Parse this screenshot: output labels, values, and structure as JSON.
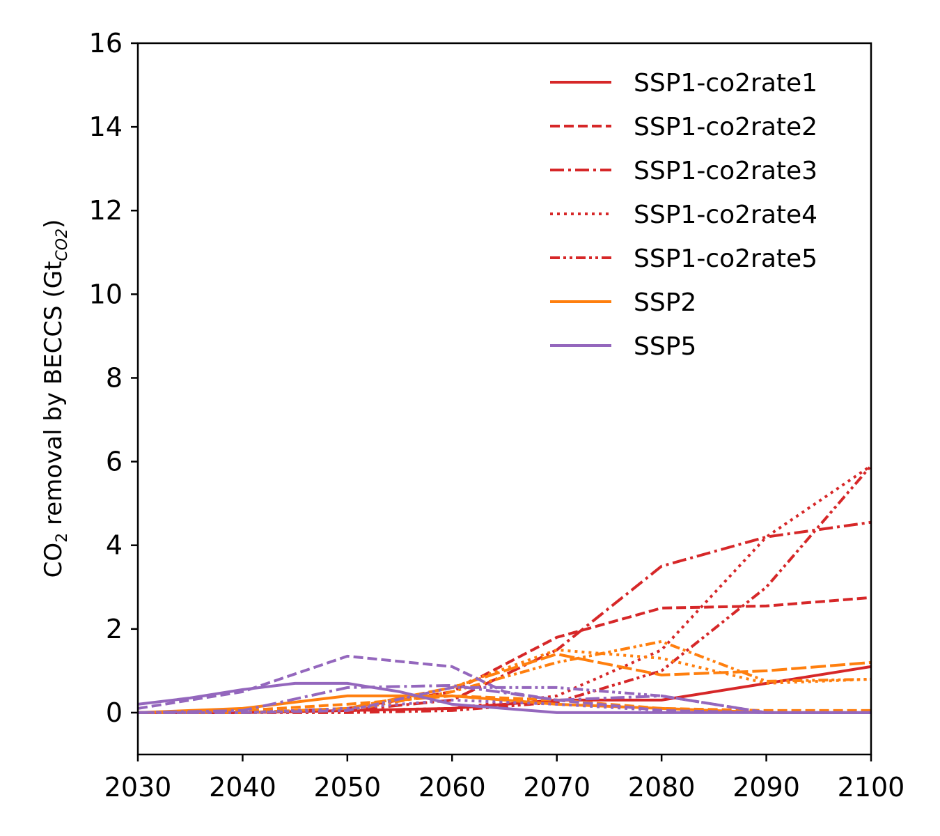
{
  "chart_data": {
    "type": "line",
    "ylabel": {
      "prefix": "CO",
      "sub": "2",
      "middle": " removal by BECCS (Gt",
      "unit_sub": "CO2",
      "suffix": ")"
    },
    "xlim": [
      2030,
      2100
    ],
    "ylim": [
      -1,
      16
    ],
    "xticks": [
      2030,
      2040,
      2050,
      2060,
      2070,
      2080,
      2090,
      2100
    ],
    "yticks": [
      0,
      2,
      4,
      6,
      8,
      10,
      12,
      14,
      16
    ],
    "grid": false,
    "legend_position": "top-right",
    "colors": {
      "ssp1": "#d62728",
      "ssp2": "#ff7f0e",
      "ssp5": "#9467bd"
    },
    "series": [
      {
        "name": "SSP1-co2rate1",
        "legend": true,
        "color": "#d62728",
        "dash": "solid",
        "x": [
          2030,
          2040,
          2050,
          2060,
          2070,
          2080,
          2090,
          2100
        ],
        "y": [
          0,
          0,
          0.05,
          0.1,
          0.3,
          0.3,
          0.7,
          1.1
        ]
      },
      {
        "name": "SSP1-co2rate2",
        "legend": true,
        "color": "#d62728",
        "dash": "dashed",
        "x": [
          2030,
          2040,
          2050,
          2060,
          2070,
          2080,
          2090,
          2100
        ],
        "y": [
          0,
          0,
          0.1,
          0.5,
          1.8,
          2.5,
          2.55,
          2.75
        ]
      },
      {
        "name": "SSP1-co2rate3",
        "legend": true,
        "color": "#d62728",
        "dash": "dashdot",
        "x": [
          2030,
          2040,
          2050,
          2060,
          2070,
          2080,
          2090,
          2100
        ],
        "y": [
          0,
          0,
          0.05,
          0.3,
          1.5,
          3.5,
          4.2,
          4.55
        ]
      },
      {
        "name": "SSP1-co2rate4",
        "legend": true,
        "color": "#d62728",
        "dash": "dotted",
        "x": [
          2030,
          2040,
          2050,
          2060,
          2070,
          2080,
          2090,
          2100
        ],
        "y": [
          0,
          0,
          0.05,
          0.1,
          0.4,
          1.5,
          4.2,
          5.9
        ]
      },
      {
        "name": "SSP1-co2rate5",
        "legend": true,
        "color": "#d62728",
        "dash": "dashdotdot",
        "x": [
          2030,
          2040,
          2050,
          2060,
          2070,
          2080,
          2090,
          2100
        ],
        "y": [
          0,
          0,
          0,
          0.05,
          0.25,
          1.0,
          3.0,
          5.9
        ]
      },
      {
        "name": "SSP2",
        "legend": true,
        "color": "#ff7f0e",
        "dash": "solid",
        "x": [
          2030,
          2040,
          2050,
          2060,
          2070,
          2080,
          2090,
          2100
        ],
        "y": [
          0,
          0.1,
          0.4,
          0.4,
          0.2,
          0.1,
          0,
          0
        ]
      },
      {
        "name": "",
        "legend": false,
        "color": "#ff7f0e",
        "dash": "dashed",
        "x": [
          2030,
          2040,
          2050,
          2060,
          2070,
          2080,
          2090,
          2100
        ],
        "y": [
          0,
          0.05,
          0.2,
          0.4,
          0.3,
          0.1,
          0.05,
          0.05
        ]
      },
      {
        "name": "",
        "legend": false,
        "color": "#ff7f0e",
        "dash": "longdash",
        "x": [
          2030,
          2040,
          2050,
          2060,
          2070,
          2080,
          2090,
          2100
        ],
        "y": [
          0,
          0,
          0.1,
          0.6,
          1.4,
          0.9,
          1.0,
          1.2
        ]
      },
      {
        "name": "",
        "legend": false,
        "color": "#ff7f0e",
        "dash": "dotted",
        "x": [
          2030,
          2040,
          2050,
          2060,
          2070,
          2080,
          2090,
          2100
        ],
        "y": [
          0,
          0,
          0.1,
          0.6,
          1.5,
          1.3,
          0.7,
          0.8
        ]
      },
      {
        "name": "",
        "legend": false,
        "color": "#ff7f0e",
        "dash": "dashdotdot",
        "x": [
          2030,
          2040,
          2050,
          2060,
          2070,
          2080,
          2090,
          2100
        ],
        "y": [
          0,
          0,
          0.05,
          0.5,
          1.2,
          1.7,
          0.75,
          0.8
        ]
      },
      {
        "name": "SSP5",
        "legend": true,
        "color": "#9467bd",
        "dash": "solid",
        "x": [
          2030,
          2035,
          2040,
          2045,
          2050,
          2055,
          2060,
          2070,
          2080,
          2090,
          2100
        ],
        "y": [
          0.2,
          0.35,
          0.55,
          0.7,
          0.7,
          0.5,
          0.2,
          0,
          0,
          0,
          0
        ]
      },
      {
        "name": "",
        "legend": false,
        "color": "#9467bd",
        "dash": "dashed",
        "x": [
          2030,
          2040,
          2050,
          2060,
          2065,
          2070,
          2080,
          2090,
          2100
        ],
        "y": [
          0.1,
          0.5,
          1.35,
          1.1,
          0.5,
          0.3,
          0.05,
          0,
          0
        ]
      },
      {
        "name": "",
        "legend": false,
        "color": "#9467bd",
        "dash": "dashdot",
        "x": [
          2030,
          2040,
          2050,
          2060,
          2070,
          2080,
          2090,
          2100
        ],
        "y": [
          0,
          0.05,
          0.6,
          0.65,
          0.3,
          0.4,
          0,
          0
        ]
      },
      {
        "name": "",
        "legend": false,
        "color": "#9467bd",
        "dash": "dotted",
        "x": [
          2030,
          2040,
          2050,
          2060,
          2070,
          2080,
          2090,
          2100
        ],
        "y": [
          0,
          0,
          0.1,
          0.3,
          0.2,
          0.05,
          0,
          0
        ]
      },
      {
        "name": "",
        "legend": false,
        "color": "#9467bd",
        "dash": "dashdotdot",
        "x": [
          2030,
          2040,
          2050,
          2060,
          2070,
          2080,
          2090,
          2100
        ],
        "y": [
          0,
          0,
          0.05,
          0.6,
          0.6,
          0.4,
          0,
          0
        ]
      }
    ]
  }
}
